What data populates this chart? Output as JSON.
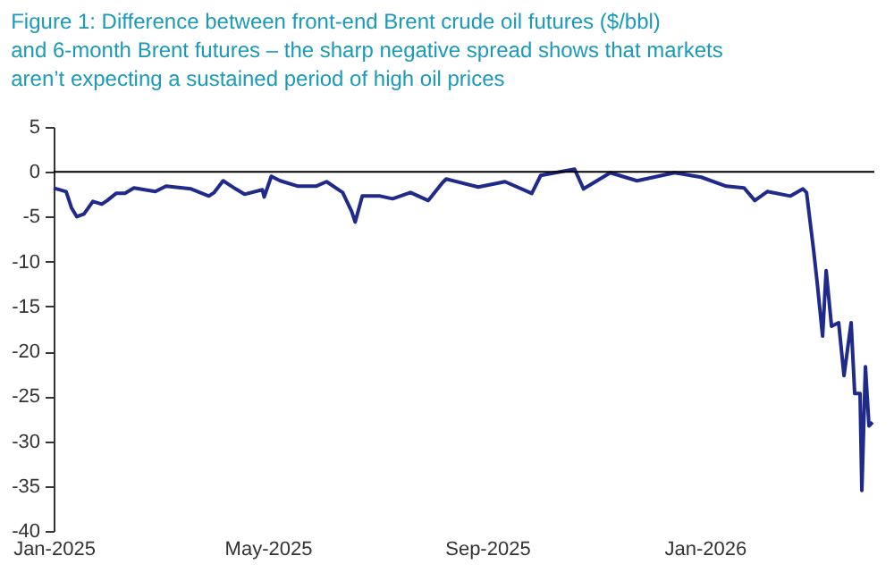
{
  "chart_data": {
    "type": "line",
    "title": "Figure 1: Difference between front-end Brent crude oil futures ($/bbl) and 6-month Brent futures – the sharp negative spread shows that markets aren’t expecting a sustained period of high oil prices",
    "x": [
      "2025-01-01",
      "2025-01-08",
      "2025-01-11",
      "2025-01-14",
      "2025-01-18",
      "2025-01-23",
      "2025-01-28",
      "2025-01-31",
      "2025-02-05",
      "2025-02-10",
      "2025-02-15",
      "2025-02-27",
      "2025-03-05",
      "2025-03-19",
      "2025-03-29",
      "2025-04-01",
      "2025-04-06",
      "2025-04-13",
      "2025-04-18",
      "2025-04-28",
      "2025-04-29",
      "2025-05-03",
      "2025-05-08",
      "2025-05-18",
      "2025-05-28",
      "2025-06-03",
      "2025-06-12",
      "2025-06-17",
      "2025-06-19",
      "2025-06-23",
      "2025-07-03",
      "2025-07-10",
      "2025-07-20",
      "2025-07-30",
      "2025-08-07",
      "2025-08-09",
      "2025-08-27",
      "2025-09-11",
      "2025-09-26",
      "2025-10-01",
      "2025-10-20",
      "2025-10-25",
      "2025-11-09",
      "2025-11-24",
      "2025-12-15",
      "2025-12-30",
      "2026-01-13",
      "2026-01-23",
      "2026-01-29",
      "2026-02-05",
      "2026-02-18",
      "2026-02-25",
      "2026-02-27",
      "2026-03-03",
      "2026-03-05",
      "2026-03-08",
      "2026-03-10",
      "2026-03-13",
      "2026-03-17",
      "2026-03-20",
      "2026-03-24",
      "2026-03-26",
      "2026-03-29",
      "2026-03-30",
      "2026-04-01",
      "2026-04-03",
      "2026-04-05"
    ],
    "series": [
      {
        "color": "#1f2a8a",
        "values": [
          -1.8,
          -2.2,
          -4.0,
          -5.0,
          -4.7,
          -3.3,
          -3.6,
          -3.2,
          -2.4,
          -2.4,
          -1.8,
          -2.2,
          -1.6,
          -1.9,
          -2.7,
          -2.3,
          -1.0,
          -1.9,
          -2.5,
          -2.0,
          -2.8,
          -0.5,
          -1.0,
          -1.6,
          -1.6,
          -1.1,
          -2.3,
          -4.4,
          -5.6,
          -2.7,
          -2.7,
          -3.0,
          -2.3,
          -3.2,
          -1.2,
          -0.8,
          -1.7,
          -1.1,
          -2.4,
          -0.4,
          0.3,
          -1.9,
          -0.1,
          -1.0,
          -0.1,
          -0.6,
          -1.6,
          -1.8,
          -3.2,
          -2.2,
          -2.7,
          -1.9,
          -2.3,
          -8.8,
          -12.4,
          -18.3,
          -11.0,
          -17.2,
          -16.8,
          -22.7,
          -16.8,
          -24.7,
          -24.7,
          -35.5,
          -21.7,
          -28.3,
          -27.9
        ]
      }
    ],
    "xlim": [
      "2025-01-01",
      "2026-04-06"
    ],
    "xticks": [
      {
        "value": "2025-01-01",
        "label": "Jan-2025"
      },
      {
        "value": "2025-05-01",
        "label": "May-2025"
      },
      {
        "value": "2025-09-01",
        "label": "Sep-2025"
      },
      {
        "value": "2026-01-01",
        "label": "Jan-2026"
      }
    ],
    "ylim": [
      -40,
      5
    ],
    "yticks": [
      -40,
      -35,
      -30,
      -25,
      -20,
      -15,
      -10,
      -5,
      0,
      5
    ],
    "ref_lines": [
      {
        "axis": "y",
        "value": 0,
        "color": "#000000"
      }
    ],
    "grid": false,
    "legend": false
  }
}
